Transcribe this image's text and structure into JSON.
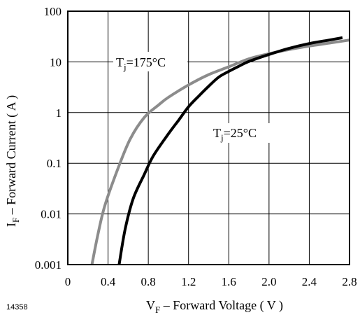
{
  "chart_data": {
    "type": "line",
    "xlabel": {
      "main": "V",
      "sub": "F",
      "rest": " – Forward Voltage ( V )"
    },
    "ylabel": {
      "main": "I",
      "sub": "F",
      "rest": " – Forward Current ( A )"
    },
    "xlim": [
      0,
      2.8
    ],
    "ylim": [
      0.001,
      100
    ],
    "yscale": "log",
    "grid": true,
    "x_ticks": [
      "0",
      "0.4",
      "0.8",
      "1.2",
      "1.6",
      "2.0",
      "2.4",
      "2.8"
    ],
    "y_ticks": [
      "0.001",
      "0.01",
      "0.1",
      "1",
      "10",
      "100"
    ],
    "series": [
      {
        "name": {
          "main": "T",
          "sub": "j",
          "rest": "=175°C"
        },
        "color": "#8c8c8c",
        "points": [
          [
            0.24,
            0.001
          ],
          [
            0.3,
            0.004
          ],
          [
            0.37,
            0.015
          ],
          [
            0.5,
            0.08
          ],
          [
            0.62,
            0.3
          ],
          [
            0.76,
            0.8
          ],
          [
            0.9,
            1.4
          ],
          [
            1.0,
            2.0
          ],
          [
            1.2,
            3.5
          ],
          [
            1.4,
            5.6
          ],
          [
            1.6,
            8.0
          ],
          [
            1.8,
            11.5
          ],
          [
            2.0,
            14.5
          ],
          [
            2.2,
            17.5
          ],
          [
            2.4,
            20.5
          ],
          [
            2.6,
            23.5
          ],
          [
            2.8,
            27.0
          ]
        ]
      },
      {
        "name": {
          "main": "T",
          "sub": "j",
          "rest": "=25°C"
        },
        "color": "#000000",
        "points": [
          [
            0.51,
            0.001
          ],
          [
            0.57,
            0.005
          ],
          [
            0.65,
            0.02
          ],
          [
            0.76,
            0.06
          ],
          [
            0.85,
            0.14
          ],
          [
            1.0,
            0.38
          ],
          [
            1.1,
            0.7
          ],
          [
            1.2,
            1.3
          ],
          [
            1.3,
            2.1
          ],
          [
            1.4,
            3.3
          ],
          [
            1.5,
            5.0
          ],
          [
            1.6,
            6.5
          ],
          [
            1.7,
            8.2
          ],
          [
            1.8,
            10.2
          ],
          [
            2.0,
            14.0
          ],
          [
            2.2,
            18.5
          ],
          [
            2.4,
            23.0
          ],
          [
            2.6,
            27.0
          ],
          [
            2.73,
            30.0
          ]
        ]
      }
    ]
  },
  "figure_id": "14358"
}
